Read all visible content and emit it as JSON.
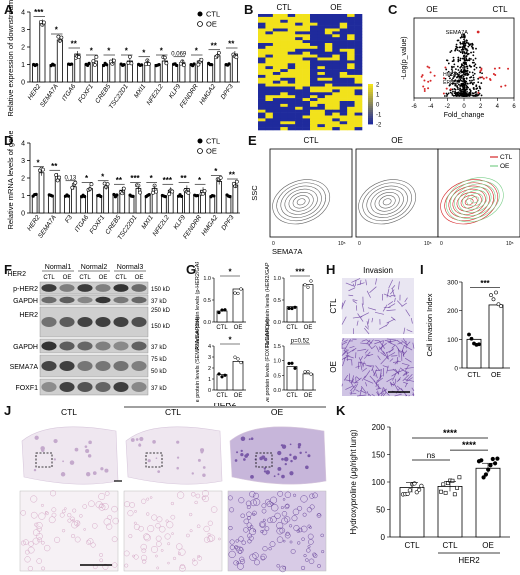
{
  "panel_letters": [
    "A",
    "B",
    "C",
    "D",
    "E",
    "F",
    "G",
    "H",
    "I",
    "J",
    "K"
  ],
  "legend": {
    "ctl": "CTL",
    "oe": "OE"
  },
  "colors": {
    "red": "#d62728",
    "blue": "#1f2a9c",
    "yellow": "#f2e21b",
    "green": "#7ccf8a",
    "purple": "#6a3fa0"
  },
  "chart_data": [
    {
      "id": "A",
      "type": "bar",
      "ylabel": "Relative expression of downstream genes",
      "ylim": [
        0,
        4
      ],
      "yticks": [
        0,
        1,
        2,
        3,
        4
      ],
      "categories": [
        "HER2",
        "SEMA7A",
        "ITGA6",
        "FOXF1",
        "CREB5",
        "TSC22D1",
        "MXI1",
        "NFE2L2",
        "KLF9",
        "FENDRR",
        "HMGA2",
        "DPF3"
      ],
      "series": [
        {
          "name": "CTL",
          "values": [
            1,
            1,
            1,
            1,
            1,
            1,
            1,
            1,
            1,
            1,
            1,
            1
          ]
        },
        {
          "name": "OE",
          "values": [
            3.4,
            2.4,
            1.6,
            1.2,
            1.2,
            1.2,
            1.1,
            1.2,
            1.1,
            1.2,
            1.5,
            1.6
          ]
        }
      ],
      "significance": [
        "***",
        "*",
        "**",
        "*",
        "*",
        "*",
        "*",
        "*",
        "0.069",
        "*",
        "**",
        "**"
      ]
    },
    {
      "id": "B",
      "type": "heatmap",
      "column_groups": [
        "CTL",
        "OE"
      ],
      "colorbar_ticks": [
        "2",
        "1",
        "0",
        "-1",
        "-2"
      ]
    },
    {
      "id": "C",
      "type": "scatter",
      "xlabel": "Fold_change",
      "ylabel": "-Log(p_value)",
      "xticks": [
        "-6",
        "-4",
        "-2",
        "0",
        "2",
        "4",
        "6"
      ],
      "group_labels": [
        "OE",
        "CTL"
      ],
      "annotations": [
        "SEMA7A",
        "HMGA2",
        "ERBB2"
      ]
    },
    {
      "id": "D",
      "type": "bar",
      "ylabel": "Relative mRNA levels of genes",
      "ylim": [
        0,
        4
      ],
      "yticks": [
        0,
        1,
        2,
        3,
        4
      ],
      "categories": [
        "HER2",
        "SEMA7A",
        "F3",
        "ITGA6",
        "FOXF1",
        "CREB5",
        "TSC22D1",
        "MXI1",
        "NFE2L2",
        "KLF9",
        "FENDRR",
        "HMGA2",
        "DPF3"
      ],
      "series": [
        {
          "name": "CTL",
          "values": [
            1,
            1,
            1,
            1,
            1,
            1,
            1,
            1,
            1,
            1,
            1,
            1,
            1
          ]
        },
        {
          "name": "OE",
          "values": [
            2.3,
            2.1,
            1.5,
            1.4,
            1.5,
            1.3,
            1.4,
            1.4,
            1.3,
            1.4,
            1.3,
            1.8,
            1.6
          ]
        }
      ],
      "significance": [
        "*",
        "**",
        "0.13",
        "*",
        "*",
        "**",
        "***",
        "*",
        "***",
        "**",
        "*",
        "*",
        "**"
      ]
    },
    {
      "id": "E",
      "type": "scatter",
      "subpanels": [
        "CTL",
        "OE",
        ""
      ],
      "ylabel": "SSC",
      "xlabel": "SEMA7A",
      "xticks": [
        "0",
        "10⁵"
      ]
    },
    {
      "id": "G",
      "type": "bar",
      "subcharts": [
        {
          "ylabel": "Relative protein levels (p-HER2/GAPDH)",
          "ylim": [
            0,
            1.0
          ],
          "yticks": [
            "0.0",
            "0.5",
            "1.0"
          ],
          "categories": [
            "CTL",
            "OE"
          ],
          "values": [
            0.25,
            0.75
          ],
          "sig": "*"
        },
        {
          "ylabel": "Relative protein levels (HER2/GAPDH)",
          "ylim": [
            0,
            1.0
          ],
          "yticks": [
            "0.0",
            "0.5",
            "1.0"
          ],
          "categories": [
            "CTL",
            "OE"
          ],
          "values": [
            0.35,
            0.85
          ],
          "sig": "***"
        },
        {
          "ylabel": "Relative protein levels (SEMA7A/GAPDH)",
          "ylim": [
            0,
            4
          ],
          "yticks": [
            "0",
            "1",
            "2",
            "3",
            "4"
          ],
          "categories": [
            "CTL",
            "OE"
          ],
          "values": [
            1.4,
            2.6
          ],
          "sig": "*"
        },
        {
          "ylabel": "Relative protein levels (FOXF1/GAPDH)",
          "ylim": [
            0,
            1.5
          ],
          "yticks": [
            "0.0",
            "0.5",
            "1.0",
            "1.5"
          ],
          "categories": [
            "CTL",
            "OE"
          ],
          "values": [
            0.8,
            0.55
          ],
          "sig": "p=0.52"
        }
      ]
    },
    {
      "id": "I",
      "type": "bar",
      "ylabel": "Cell invasion Index",
      "ylim": [
        0,
        300
      ],
      "yticks": [
        0,
        100,
        200,
        300
      ],
      "categories": [
        "CTL",
        "OE"
      ],
      "values": [
        100,
        220
      ],
      "sig": "***"
    },
    {
      "id": "K",
      "type": "bar",
      "ylabel": "Hydroxyproline (μg/right lung)",
      "ylim": [
        0,
        200
      ],
      "yticks": [
        0,
        50,
        100,
        150,
        200
      ],
      "categories": [
        "CTL",
        "CTL",
        "OE"
      ],
      "group_label": "HER2",
      "values": [
        90,
        92,
        125
      ],
      "sig": [
        "ns",
        "****",
        "****"
      ]
    }
  ],
  "blot": {
    "header": "HER2",
    "groups": [
      "Normal1",
      "Normal2",
      "Normal3"
    ],
    "lanes": [
      "CTL",
      "OE",
      "CTL",
      "OE",
      "CTL",
      "OE"
    ],
    "rows": [
      {
        "label": "p-HER2",
        "mw": "150 kD"
      },
      {
        "label": "GAPDH",
        "mw": "37 kD"
      },
      {
        "label": "HER2",
        "mw": "250 kD"
      },
      {
        "label": "",
        "mw": "150 kD"
      },
      {
        "label": "GAPDH",
        "mw": "37 kD"
      },
      {
        "label": "SEMA7A",
        "mw": "75 kD"
      },
      {
        "label": "",
        "mw": "50 kD"
      },
      {
        "label": "FOXF1",
        "mw": "37 kD"
      }
    ]
  },
  "invasion": {
    "title": "Invasion",
    "rows": [
      "CTL",
      "OE"
    ]
  },
  "histology": {
    "columns": [
      "CTL",
      "CTL",
      "OE"
    ],
    "group_label": "HER2"
  }
}
